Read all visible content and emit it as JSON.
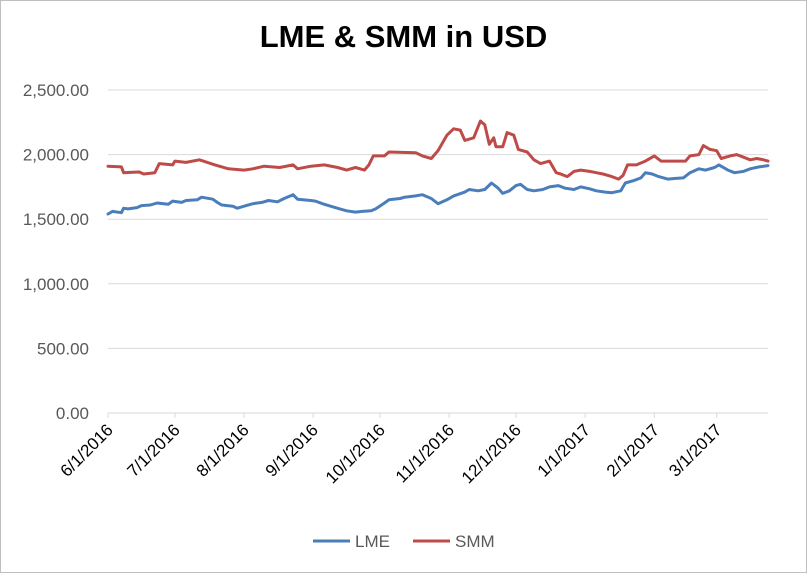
{
  "chart_data": {
    "type": "line",
    "title": "LME & SMM in USD",
    "xlabel": "",
    "ylabel": "",
    "ylim": [
      0,
      2500
    ],
    "yticks": [
      0,
      500,
      1000,
      1500,
      2000,
      2500
    ],
    "ytick_labels": [
      "0.00",
      "500.00",
      "1,000.00",
      "1,500.00",
      "2,000.00",
      "2,500.00"
    ],
    "xlim": [
      "2016-06-01",
      "2017-03-24"
    ],
    "xticks": [
      "2016-06-01",
      "2016-07-01",
      "2016-08-01",
      "2016-09-01",
      "2016-10-01",
      "2016-11-01",
      "2016-12-01",
      "2017-01-01",
      "2017-02-01",
      "2017-03-01"
    ],
    "xtick_labels": [
      "6/1/2016",
      "7/1/2016",
      "8/1/2016",
      "9/1/2016",
      "10/1/2016",
      "11/1/2016",
      "12/1/2016",
      "1/1/2017",
      "2/1/2017",
      "3/1/2017"
    ],
    "grid": "horizontal",
    "legend": "bottom",
    "series": [
      {
        "name": "LME",
        "color": "#4a7ebb",
        "points": [
          [
            "2016-06-01",
            1540
          ],
          [
            "2016-06-03",
            1560
          ],
          [
            "2016-06-07",
            1550
          ],
          [
            "2016-06-08",
            1585
          ],
          [
            "2016-06-10",
            1580
          ],
          [
            "2016-06-14",
            1590
          ],
          [
            "2016-06-16",
            1605
          ],
          [
            "2016-06-20",
            1610
          ],
          [
            "2016-06-23",
            1625
          ],
          [
            "2016-06-28",
            1615
          ],
          [
            "2016-06-30",
            1640
          ],
          [
            "2016-07-04",
            1630
          ],
          [
            "2016-07-06",
            1645
          ],
          [
            "2016-07-11",
            1650
          ],
          [
            "2016-07-13",
            1670
          ],
          [
            "2016-07-18",
            1655
          ],
          [
            "2016-07-20",
            1630
          ],
          [
            "2016-07-22",
            1610
          ],
          [
            "2016-07-27",
            1600
          ],
          [
            "2016-07-29",
            1585
          ],
          [
            "2016-08-02",
            1605
          ],
          [
            "2016-08-05",
            1620
          ],
          [
            "2016-08-09",
            1630
          ],
          [
            "2016-08-12",
            1645
          ],
          [
            "2016-08-16",
            1635
          ],
          [
            "2016-08-19",
            1660
          ],
          [
            "2016-08-23",
            1690
          ],
          [
            "2016-08-25",
            1655
          ],
          [
            "2016-08-31",
            1645
          ],
          [
            "2016-09-02",
            1640
          ],
          [
            "2016-09-06",
            1615
          ],
          [
            "2016-09-09",
            1600
          ],
          [
            "2016-09-13",
            1580
          ],
          [
            "2016-09-16",
            1565
          ],
          [
            "2016-09-20",
            1555
          ],
          [
            "2016-09-23",
            1560
          ],
          [
            "2016-09-27",
            1565
          ],
          [
            "2016-09-29",
            1580
          ],
          [
            "2016-10-03",
            1625
          ],
          [
            "2016-10-05",
            1650
          ],
          [
            "2016-10-10",
            1660
          ],
          [
            "2016-10-12",
            1670
          ],
          [
            "2016-10-17",
            1680
          ],
          [
            "2016-10-20",
            1690
          ],
          [
            "2016-10-24",
            1660
          ],
          [
            "2016-10-27",
            1620
          ],
          [
            "2016-10-31",
            1650
          ],
          [
            "2016-11-03",
            1680
          ],
          [
            "2016-11-08",
            1710
          ],
          [
            "2016-11-10",
            1730
          ],
          [
            "2016-11-14",
            1720
          ],
          [
            "2016-11-17",
            1730
          ],
          [
            "2016-11-20",
            1780
          ],
          [
            "2016-11-23",
            1740
          ],
          [
            "2016-11-25",
            1700
          ],
          [
            "2016-11-28",
            1720
          ],
          [
            "2016-12-01",
            1760
          ],
          [
            "2016-12-03",
            1770
          ],
          [
            "2016-12-06",
            1730
          ],
          [
            "2016-12-09",
            1720
          ],
          [
            "2016-12-13",
            1730
          ],
          [
            "2016-12-16",
            1750
          ],
          [
            "2016-12-20",
            1760
          ],
          [
            "2016-12-23",
            1740
          ],
          [
            "2016-12-27",
            1730
          ],
          [
            "2016-12-30",
            1750
          ],
          [
            "2017-01-03",
            1735
          ],
          [
            "2017-01-06",
            1720
          ],
          [
            "2017-01-10",
            1710
          ],
          [
            "2017-01-13",
            1705
          ],
          [
            "2017-01-17",
            1720
          ],
          [
            "2017-01-19",
            1780
          ],
          [
            "2017-01-23",
            1800
          ],
          [
            "2017-01-26",
            1820
          ],
          [
            "2017-01-28",
            1860
          ],
          [
            "2017-01-31",
            1850
          ],
          [
            "2017-02-03",
            1830
          ],
          [
            "2017-02-07",
            1810
          ],
          [
            "2017-02-10",
            1815
          ],
          [
            "2017-02-14",
            1820
          ],
          [
            "2017-02-17",
            1860
          ],
          [
            "2017-02-21",
            1890
          ],
          [
            "2017-02-24",
            1880
          ],
          [
            "2017-02-28",
            1900
          ],
          [
            "2017-03-02",
            1920
          ],
          [
            "2017-03-06",
            1880
          ],
          [
            "2017-03-09",
            1860
          ],
          [
            "2017-03-13",
            1870
          ],
          [
            "2017-03-16",
            1890
          ],
          [
            "2017-03-20",
            1905
          ],
          [
            "2017-03-24",
            1915
          ]
        ]
      },
      {
        "name": "SMM",
        "color": "#be4b48",
        "points": [
          [
            "2016-06-01",
            1910
          ],
          [
            "2016-06-07",
            1905
          ],
          [
            "2016-06-08",
            1860
          ],
          [
            "2016-06-15",
            1865
          ],
          [
            "2016-06-17",
            1850
          ],
          [
            "2016-06-22",
            1860
          ],
          [
            "2016-06-24",
            1930
          ],
          [
            "2016-06-30",
            1920
          ],
          [
            "2016-07-01",
            1950
          ],
          [
            "2016-07-06",
            1940
          ],
          [
            "2016-07-12",
            1960
          ],
          [
            "2016-07-19",
            1920
          ],
          [
            "2016-07-25",
            1890
          ],
          [
            "2016-08-01",
            1880
          ],
          [
            "2016-08-05",
            1890
          ],
          [
            "2016-08-10",
            1910
          ],
          [
            "2016-08-17",
            1900
          ],
          [
            "2016-08-23",
            1920
          ],
          [
            "2016-08-25",
            1890
          ],
          [
            "2016-08-31",
            1910
          ],
          [
            "2016-09-06",
            1920
          ],
          [
            "2016-09-12",
            1900
          ],
          [
            "2016-09-16",
            1880
          ],
          [
            "2016-09-20",
            1900
          ],
          [
            "2016-09-24",
            1880
          ],
          [
            "2016-09-26",
            1920
          ],
          [
            "2016-09-28",
            1990
          ],
          [
            "2016-10-03",
            1990
          ],
          [
            "2016-10-05",
            2020
          ],
          [
            "2016-10-17",
            2015
          ],
          [
            "2016-10-20",
            1990
          ],
          [
            "2016-10-24",
            1970
          ],
          [
            "2016-10-27",
            2030
          ],
          [
            "2016-10-31",
            2150
          ],
          [
            "2016-11-03",
            2200
          ],
          [
            "2016-11-06",
            2190
          ],
          [
            "2016-11-08",
            2110
          ],
          [
            "2016-11-12",
            2130
          ],
          [
            "2016-11-15",
            2260
          ],
          [
            "2016-11-17",
            2230
          ],
          [
            "2016-11-19",
            2080
          ],
          [
            "2016-11-21",
            2130
          ],
          [
            "2016-11-22",
            2060
          ],
          [
            "2016-11-25",
            2060
          ],
          [
            "2016-11-27",
            2170
          ],
          [
            "2016-11-30",
            2150
          ],
          [
            "2016-12-02",
            2040
          ],
          [
            "2016-12-06",
            2020
          ],
          [
            "2016-12-09",
            1960
          ],
          [
            "2016-12-12",
            1930
          ],
          [
            "2016-12-16",
            1950
          ],
          [
            "2016-12-19",
            1860
          ],
          [
            "2016-12-21",
            1850
          ],
          [
            "2016-12-24",
            1830
          ],
          [
            "2016-12-27",
            1870
          ],
          [
            "2016-12-30",
            1880
          ],
          [
            "2017-01-03",
            1870
          ],
          [
            "2017-01-06",
            1860
          ],
          [
            "2017-01-09",
            1850
          ],
          [
            "2017-01-13",
            1830
          ],
          [
            "2017-01-16",
            1810
          ],
          [
            "2017-01-18",
            1840
          ],
          [
            "2017-01-20",
            1920
          ],
          [
            "2017-01-24",
            1920
          ],
          [
            "2017-01-28",
            1950
          ],
          [
            "2017-02-01",
            1990
          ],
          [
            "2017-02-04",
            1950
          ],
          [
            "2017-02-15",
            1950
          ],
          [
            "2017-02-17",
            1990
          ],
          [
            "2017-02-21",
            2000
          ],
          [
            "2017-02-23",
            2070
          ],
          [
            "2017-02-26",
            2040
          ],
          [
            "2017-03-01",
            2030
          ],
          [
            "2017-03-03",
            1970
          ],
          [
            "2017-03-07",
            1990
          ],
          [
            "2017-03-10",
            2000
          ],
          [
            "2017-03-13",
            1980
          ],
          [
            "2017-03-16",
            1960
          ],
          [
            "2017-03-19",
            1970
          ],
          [
            "2017-03-22",
            1960
          ],
          [
            "2017-03-24",
            1950
          ]
        ]
      }
    ]
  }
}
